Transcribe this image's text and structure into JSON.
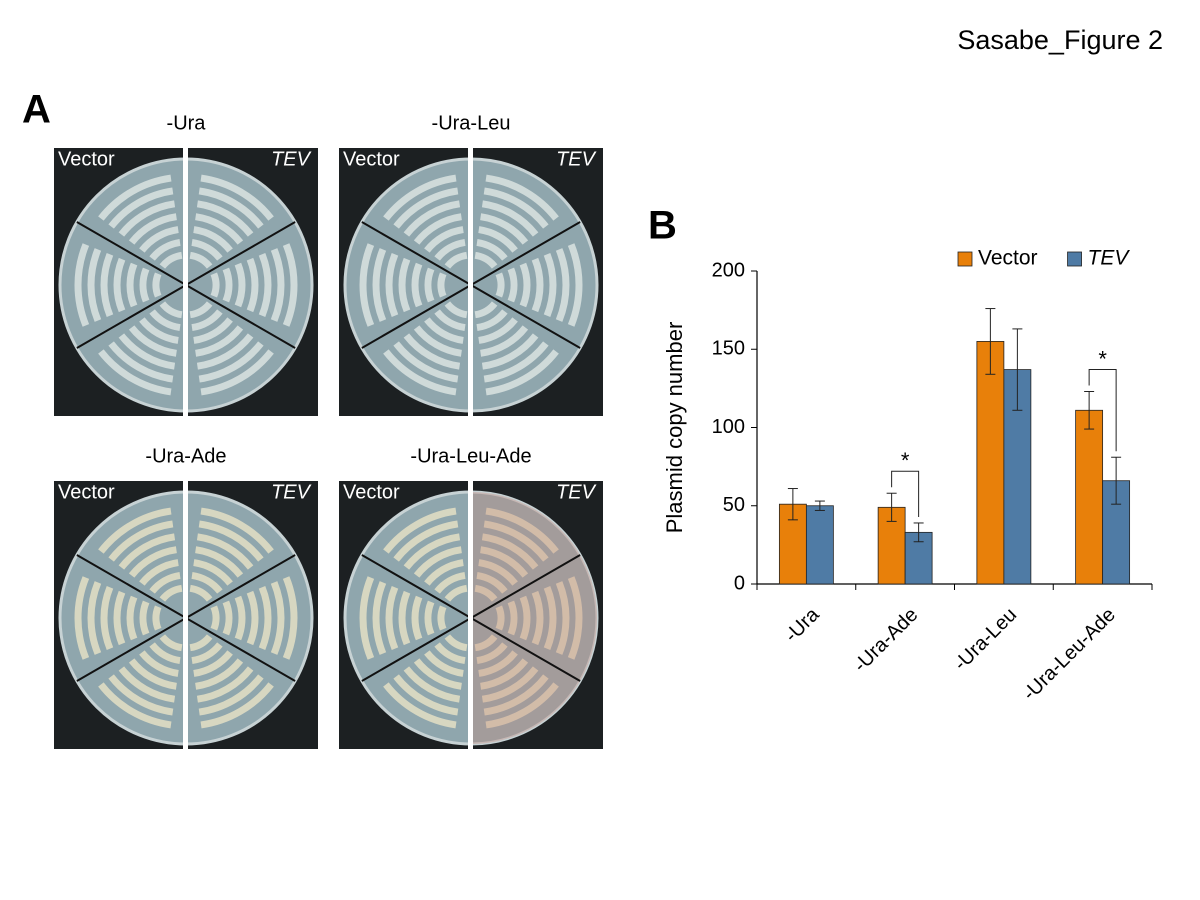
{
  "title": "Sasabe_Figure 2",
  "panel_a": {
    "label": "A",
    "plates": [
      {
        "title": "-Ura",
        "left": "Vector",
        "right": "TEV"
      },
      {
        "title": "-Ura-Leu",
        "left": "Vector",
        "right": "TEV"
      },
      {
        "title": "-Ura-Ade",
        "left": "Vector",
        "right": "TEV"
      },
      {
        "title": "-Ura-Leu-Ade",
        "left": "Vector",
        "right": "TEV"
      }
    ]
  },
  "chart_data": {
    "type": "bar",
    "label": "B",
    "ylabel": "Plasmid copy number",
    "categories": [
      "-Ura",
      "-Ura-Ade",
      "-Ura-Leu",
      "-Ura-Leu-Ade"
    ],
    "series": [
      {
        "name": "Vector",
        "color": "#e8800a",
        "values": [
          51,
          49,
          155,
          111
        ],
        "errors": [
          10,
          9,
          21,
          12
        ]
      },
      {
        "name": "TEV",
        "color": "#4f7ba5",
        "values": [
          50,
          33,
          137,
          66
        ],
        "errors": [
          3,
          6,
          26,
          15
        ]
      }
    ],
    "ylim": [
      0,
      200
    ],
    "yticks": [
      0,
      50,
      100,
      150,
      200
    ],
    "legend": "top-right",
    "annotations": [
      {
        "text": "*",
        "category": 1
      },
      {
        "text": "*",
        "category": 3
      }
    ]
  }
}
